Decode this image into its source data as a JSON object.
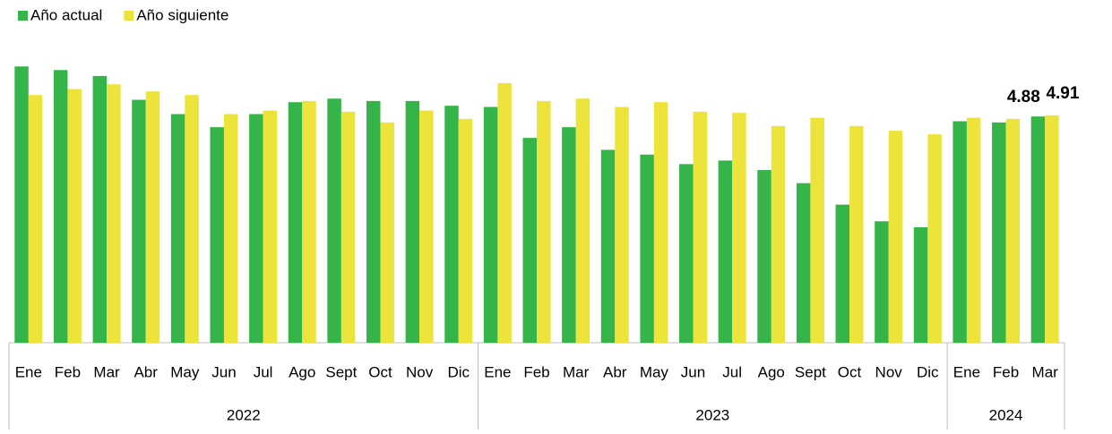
{
  "chart_data": {
    "type": "bar",
    "groups": [
      {
        "name": "2022",
        "categories": [
          "Ene",
          "Feb",
          "Mar",
          "Abr",
          "May",
          "Jun",
          "Jul",
          "Ago",
          "Sept",
          "Oct",
          "Nov",
          "Dic"
        ]
      },
      {
        "name": "2023",
        "categories": [
          "Ene",
          "Feb",
          "Mar",
          "Abr",
          "May",
          "Jun",
          "Jul",
          "Ago",
          "Sept",
          "Oct",
          "Nov",
          "Dic"
        ]
      },
      {
        "name": "2024",
        "categories": [
          "Ene",
          "Feb",
          "Mar"
        ]
      }
    ],
    "series": [
      {
        "name": "Año actual",
        "color": "#35b44a",
        "values": [
          5.32,
          5.29,
          5.24,
          5.04,
          4.92,
          4.81,
          4.92,
          5.02,
          5.05,
          5.03,
          5.03,
          4.99,
          4.98,
          4.72,
          4.81,
          4.62,
          4.58,
          4.5,
          4.53,
          4.45,
          4.34,
          4.16,
          4.02,
          3.97,
          4.86,
          4.85,
          4.9
        ]
      },
      {
        "name": "Año siguiente",
        "color": "#ece43a",
        "values": [
          5.08,
          5.13,
          5.17,
          5.11,
          5.08,
          4.92,
          4.95,
          5.03,
          4.94,
          4.85,
          4.95,
          4.88,
          5.18,
          5.03,
          5.05,
          4.98,
          5.02,
          4.94,
          4.93,
          4.82,
          4.89,
          4.82,
          4.78,
          4.75,
          4.89,
          4.88,
          4.91
        ],
        "value_labels": [
          null,
          null,
          null,
          null,
          null,
          null,
          null,
          null,
          null,
          null,
          null,
          null,
          null,
          null,
          null,
          null,
          null,
          null,
          null,
          null,
          null,
          null,
          null,
          null,
          null,
          "4.88",
          "4.91"
        ]
      }
    ],
    "ylim": [
      3,
      5.6
    ],
    "legend": "top-left"
  }
}
